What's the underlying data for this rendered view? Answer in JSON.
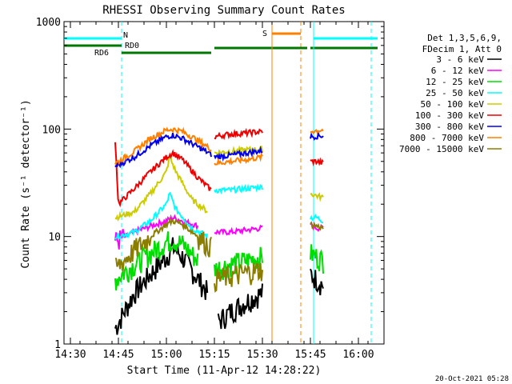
{
  "footer": {
    "timestamp": "20-Oct-2021 05:28"
  },
  "colors": {
    "s1": "#000000",
    "s2": "#ff00ff",
    "s3": "#00dd00",
    "s4": "#00ffff",
    "s5": "#cccc00",
    "s6": "#ee0000",
    "s7": "#0000ee",
    "s8": "#ff8000",
    "s9": "#8b7d00",
    "grid": "#000000",
    "cyan": "#00ffff",
    "orange": "#ff8000",
    "green": "#007700"
  },
  "chart_data": {
    "type": "line",
    "title": "RHESSI Observing Summary Count Rates",
    "xlabel": "Start Time (11-Apr-12 14:28:22)",
    "ylabel": "Count Rate (s⁻¹ detector⁻¹)",
    "y_scale": "log",
    "ylim": [
      1,
      1000
    ],
    "xlim": [
      "14:28",
      "16:08"
    ],
    "x_ticks": [
      "14:30",
      "14:45",
      "15:00",
      "15:15",
      "15:30",
      "15:45",
      "16:00"
    ],
    "y_ticks": [
      "1",
      "10",
      "100",
      "1000"
    ],
    "legend_header": [
      "Det 1,3,5,6,9,",
      "FDecim 1, Att 0"
    ],
    "legend_placement": "right",
    "series": [
      {
        "name": "3 - 6 keV",
        "color": "#000000",
        "values": [
          {
            "t": "14:44",
            "y": 1.4
          },
          {
            "t": "14:46",
            "y": 1.8
          },
          {
            "t": "14:50",
            "y": 3
          },
          {
            "t": "14:55",
            "y": 4.5
          },
          {
            "t": "15:00",
            "y": 6.5
          },
          {
            "t": "15:02",
            "y": 8
          },
          {
            "t": "15:05",
            "y": 6.5
          },
          {
            "t": "15:10",
            "y": 4
          },
          {
            "t": "15:13",
            "y": 3
          },
          {
            "t": "15:16",
            "y": 1.6
          },
          {
            "t": "15:20",
            "y": 2
          },
          {
            "t": "15:25",
            "y": 2.5
          },
          {
            "t": "15:30",
            "y": 3
          },
          {
            "t": "15:45",
            "y": 4.5
          },
          {
            "t": "15:47",
            "y": 4
          },
          {
            "t": "15:49",
            "y": 3.5
          }
        ]
      },
      {
        "name": "6 - 12 keV",
        "color": "#ff00ff",
        "values": [
          {
            "t": "14:44",
            "y": 9
          },
          {
            "t": "14:50",
            "y": 11
          },
          {
            "t": "14:55",
            "y": 12.5
          },
          {
            "t": "15:00",
            "y": 14
          },
          {
            "t": "15:02",
            "y": 15
          },
          {
            "t": "15:05",
            "y": 14
          },
          {
            "t": "15:10",
            "y": 12.5
          },
          {
            "t": "15:15",
            "y": 11
          },
          {
            "t": "15:20",
            "y": 11
          },
          {
            "t": "15:25",
            "y": 11.5
          },
          {
            "t": "15:30",
            "y": 12
          },
          {
            "t": "15:45",
            "y": 13
          },
          {
            "t": "15:47",
            "y": 12
          },
          {
            "t": "15:49",
            "y": 12
          }
        ]
      },
      {
        "name": "12 - 25 keV",
        "color": "#00dd00",
        "values": [
          {
            "t": "14:44",
            "y": 4
          },
          {
            "t": "14:50",
            "y": 5.5
          },
          {
            "t": "14:55",
            "y": 7
          },
          {
            "t": "15:00",
            "y": 9
          },
          {
            "t": "15:02",
            "y": 9.5
          },
          {
            "t": "15:05",
            "y": 8.5
          },
          {
            "t": "15:10",
            "y": 6
          },
          {
            "t": "15:15",
            "y": 5
          },
          {
            "t": "15:20",
            "y": 5.5
          },
          {
            "t": "15:25",
            "y": 6
          },
          {
            "t": "15:30",
            "y": 6.5
          },
          {
            "t": "15:45",
            "y": 7
          },
          {
            "t": "15:47",
            "y": 6.5
          },
          {
            "t": "15:49",
            "y": 6
          }
        ]
      },
      {
        "name": "25 - 50 keV",
        "color": "#00ffff",
        "values": [
          {
            "t": "14:44",
            "y": 10
          },
          {
            "t": "14:50",
            "y": 11
          },
          {
            "t": "14:55",
            "y": 14
          },
          {
            "t": "15:00",
            "y": 20
          },
          {
            "t": "15:01",
            "y": 25
          },
          {
            "t": "15:03",
            "y": 18
          },
          {
            "t": "15:08",
            "y": 12
          },
          {
            "t": "15:13",
            "y": 10
          },
          {
            "t": "15:15",
            "y": 27
          },
          {
            "t": "15:20",
            "y": 27
          },
          {
            "t": "15:25",
            "y": 28
          },
          {
            "t": "15:30",
            "y": 29
          },
          {
            "t": "15:45",
            "y": 15
          },
          {
            "t": "15:47",
            "y": 15
          },
          {
            "t": "15:49",
            "y": 14
          }
        ]
      },
      {
        "name": "50 - 100 keV",
        "color": "#cccc00",
        "values": [
          {
            "t": "14:44",
            "y": 15
          },
          {
            "t": "14:50",
            "y": 17
          },
          {
            "t": "14:55",
            "y": 25
          },
          {
            "t": "15:00",
            "y": 40
          },
          {
            "t": "15:01",
            "y": 55
          },
          {
            "t": "15:03",
            "y": 40
          },
          {
            "t": "15:08",
            "y": 22
          },
          {
            "t": "15:13",
            "y": 17
          },
          {
            "t": "15:15",
            "y": 60
          },
          {
            "t": "15:20",
            "y": 62
          },
          {
            "t": "15:25",
            "y": 64
          },
          {
            "t": "15:30",
            "y": 65
          },
          {
            "t": "15:45",
            "y": 25
          },
          {
            "t": "15:47",
            "y": 24
          },
          {
            "t": "15:49",
            "y": 23
          }
        ]
      },
      {
        "name": "100 - 300 keV",
        "color": "#ee0000",
        "values": [
          {
            "t": "14:44",
            "y": 80
          },
          {
            "t": "14:45",
            "y": 20
          },
          {
            "t": "14:50",
            "y": 28
          },
          {
            "t": "14:55",
            "y": 40
          },
          {
            "t": "15:00",
            "y": 55
          },
          {
            "t": "15:02",
            "y": 60
          },
          {
            "t": "15:05",
            "y": 52
          },
          {
            "t": "15:10",
            "y": 35
          },
          {
            "t": "15:14",
            "y": 27
          },
          {
            "t": "15:15",
            "y": 85
          },
          {
            "t": "15:20",
            "y": 90
          },
          {
            "t": "15:25",
            "y": 92
          },
          {
            "t": "15:30",
            "y": 95
          },
          {
            "t": "15:45",
            "y": 50
          },
          {
            "t": "15:47",
            "y": 50
          },
          {
            "t": "15:49",
            "y": 48
          }
        ]
      },
      {
        "name": "300 - 800 keV",
        "color": "#0000ee",
        "values": [
          {
            "t": "14:44",
            "y": 45
          },
          {
            "t": "14:50",
            "y": 55
          },
          {
            "t": "14:55",
            "y": 70
          },
          {
            "t": "15:00",
            "y": 85
          },
          {
            "t": "15:02",
            "y": 88
          },
          {
            "t": "15:05",
            "y": 82
          },
          {
            "t": "15:10",
            "y": 68
          },
          {
            "t": "15:14",
            "y": 58
          },
          {
            "t": "15:15",
            "y": 55
          },
          {
            "t": "15:20",
            "y": 57
          },
          {
            "t": "15:25",
            "y": 60
          },
          {
            "t": "15:30",
            "y": 63
          },
          {
            "t": "15:45",
            "y": 85
          },
          {
            "t": "15:47",
            "y": 86
          },
          {
            "t": "15:49",
            "y": 87
          }
        ]
      },
      {
        "name": "800 - 7000 keV",
        "color": "#ff8000",
        "values": [
          {
            "t": "14:44",
            "y": 48
          },
          {
            "t": "14:50",
            "y": 62
          },
          {
            "t": "14:55",
            "y": 82
          },
          {
            "t": "15:00",
            "y": 98
          },
          {
            "t": "15:02",
            "y": 100
          },
          {
            "t": "15:05",
            "y": 95
          },
          {
            "t": "15:10",
            "y": 78
          },
          {
            "t": "15:14",
            "y": 65
          },
          {
            "t": "15:15",
            "y": 48
          },
          {
            "t": "15:20",
            "y": 50
          },
          {
            "t": "15:25",
            "y": 52
          },
          {
            "t": "15:30",
            "y": 55
          },
          {
            "t": "15:45",
            "y": 95
          },
          {
            "t": "15:47",
            "y": 97
          },
          {
            "t": "15:49",
            "y": 98
          }
        ]
      },
      {
        "name": "7000 - 15000 keV",
        "color": "#8b7d00",
        "values": [
          {
            "t": "14:44",
            "y": 5
          },
          {
            "t": "14:50",
            "y": 7.5
          },
          {
            "t": "14:55",
            "y": 10
          },
          {
            "t": "15:00",
            "y": 13
          },
          {
            "t": "15:02",
            "y": 14
          },
          {
            "t": "15:05",
            "y": 13
          },
          {
            "t": "15:10",
            "y": 10
          },
          {
            "t": "15:14",
            "y": 8
          },
          {
            "t": "15:15",
            "y": 4
          },
          {
            "t": "15:20",
            "y": 4.3
          },
          {
            "t": "15:25",
            "y": 4.6
          },
          {
            "t": "15:30",
            "y": 5
          },
          {
            "t": "15:45",
            "y": 13
          },
          {
            "t": "15:47",
            "y": 12.5
          },
          {
            "t": "15:49",
            "y": 12
          }
        ]
      }
    ],
    "annotations": [
      {
        "label": "N",
        "color": "#00ffff",
        "bar": [
          "14:28",
          "14:46"
        ],
        "line_at": "14:46",
        "line_style": "dashed"
      },
      {
        "label": "RD0",
        "color": "#007700",
        "bar": [
          "14:46",
          "15:14"
        ]
      },
      {
        "label": "RD6",
        "color": "#007700",
        "bar": [
          "14:28",
          "14:46"
        ]
      },
      {
        "label": "S",
        "color": "#ff8000",
        "bar": [
          "15:33",
          "15:42"
        ],
        "line_at": "15:42",
        "line_style": "dashed"
      },
      {
        "label": "",
        "color": "#007700",
        "bar": [
          "15:15",
          "15:44"
        ]
      },
      {
        "label": "",
        "color": "#007700",
        "bar": [
          "15:45",
          "16:02"
        ]
      },
      {
        "label": "",
        "color": "#007700",
        "bar": [
          "16:02",
          "16:06"
        ]
      },
      {
        "label": "",
        "color": "#00ffff",
        "bar": [
          "15:46",
          "16:06"
        ]
      },
      {
        "label": "",
        "color": "#ff8000",
        "line_at": "15:33",
        "line_style": "solid"
      },
      {
        "label": "",
        "color": "#00ffff",
        "line_at": "15:46",
        "line_style": "solid"
      },
      {
        "label": "",
        "color": "#00ffff",
        "line_at": "16:04",
        "line_style": "dashed"
      }
    ]
  }
}
